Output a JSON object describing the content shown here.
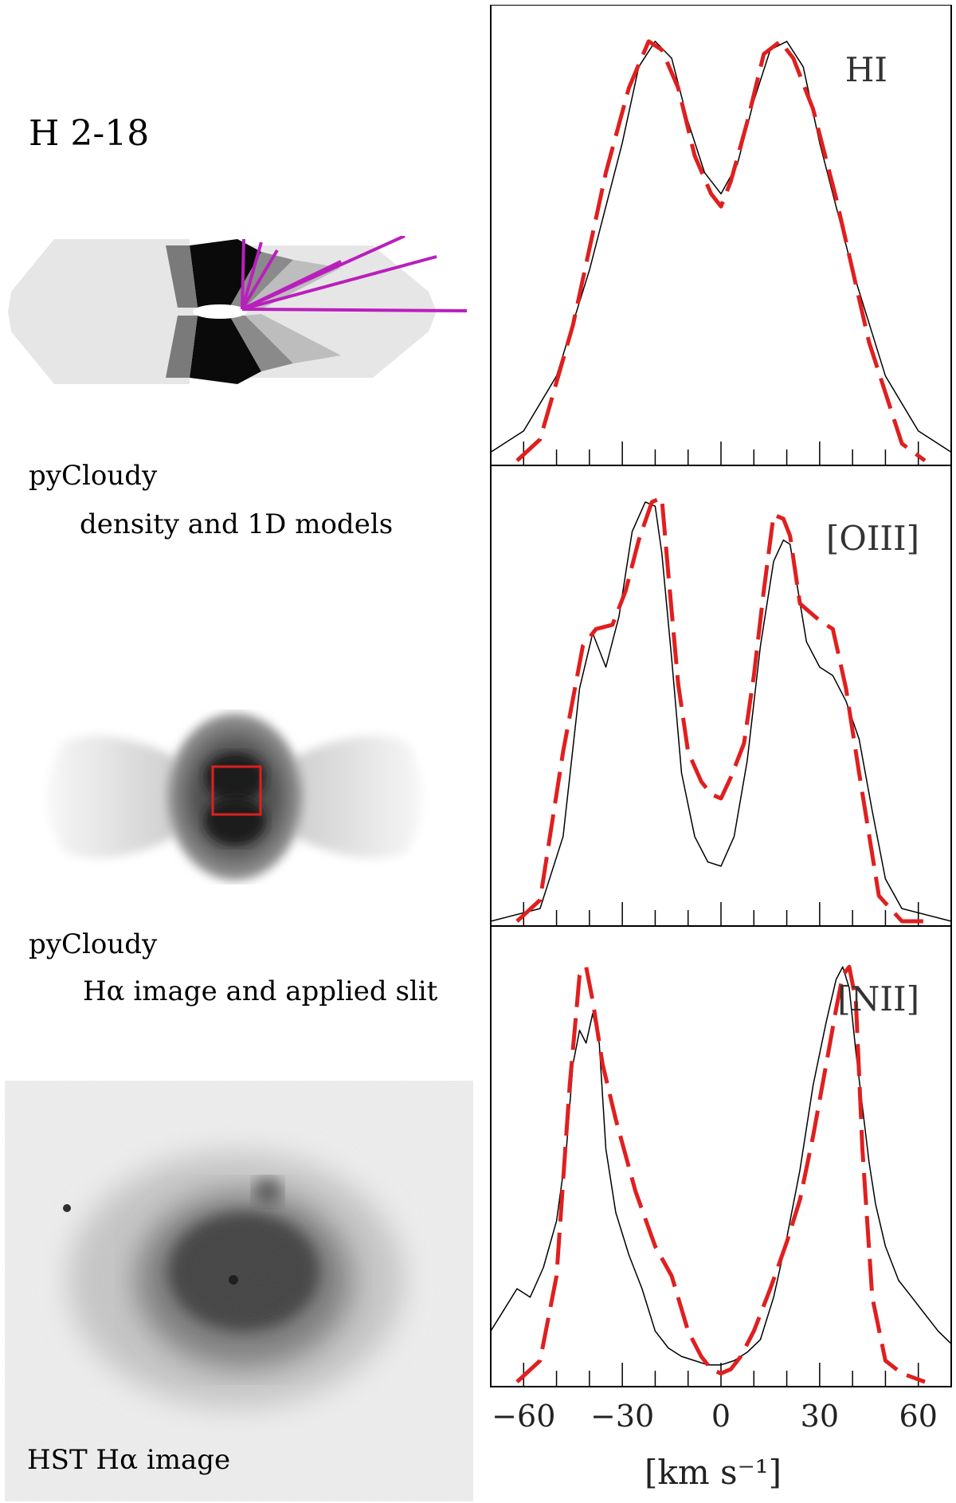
{
  "figure": {
    "object_name": "H 2-18",
    "model_caption_1": "pyCloudy",
    "model_caption_2": "density and 1D models",
    "halpha_caption_1": "pyCloudy",
    "halpha_caption_2": "Hα image and applied slit",
    "hst_caption": "HST Hα image"
  },
  "colors": {
    "observed_line": "#000000",
    "model_line": "#e01f1f",
    "radial_lines": "#b91fbd",
    "slit_box": "#e01f1f"
  },
  "chart_data": {
    "type": "line",
    "xlabel": "[km s⁻¹]",
    "x_ticks": [
      -60,
      -30,
      0,
      30,
      60
    ],
    "x_tick_labels": [
      "−60",
      "−30",
      "0",
      "30",
      "60"
    ],
    "xlim": [
      -70,
      70
    ],
    "grid": false,
    "panels": [
      {
        "label": "HI",
        "ylim": [
          0,
          1.05
        ],
        "series": [
          {
            "style": "solid",
            "color": "observed",
            "x": [
              -70,
              -60,
              -50,
              -40,
              -30,
              -25,
              -20,
              -15,
              -10,
              -5,
              0,
              5,
              10,
              15,
              20,
              25,
              30,
              40,
              50,
              60,
              70
            ],
            "y": [
              0.02,
              0.07,
              0.2,
              0.45,
              0.75,
              0.93,
              0.99,
              0.95,
              0.8,
              0.68,
              0.63,
              0.7,
              0.85,
              0.97,
              0.99,
              0.93,
              0.75,
              0.45,
              0.2,
              0.07,
              0.02
            ]
          },
          {
            "style": "dashed",
            "color": "model",
            "x": [
              -62,
              -55,
              -45,
              -35,
              -28,
              -22,
              -18,
              -13,
              -8,
              -3,
              0,
              3,
              8,
              13,
              18,
              22,
              28,
              35,
              45,
              55,
              62
            ],
            "y": [
              0.0,
              0.05,
              0.32,
              0.68,
              0.88,
              0.99,
              0.97,
              0.88,
              0.72,
              0.63,
              0.6,
              0.66,
              0.8,
              0.96,
              0.99,
              0.95,
              0.83,
              0.62,
              0.28,
              0.04,
              0.0
            ]
          }
        ]
      },
      {
        "label": "[OIII]",
        "ylim": [
          0,
          1.05
        ],
        "series": [
          {
            "style": "solid",
            "color": "observed",
            "x": [
              -70,
              -55,
              -48,
              -43,
              -39,
              -35,
              -31,
              -27,
              -23,
              -20,
              -18,
              -15,
              -12,
              -8,
              -4,
              0,
              4,
              8,
              12,
              16,
              19,
              21,
              23,
              26,
              30,
              34,
              38,
              42,
              46,
              50,
              55,
              70
            ],
            "y": [
              0.0,
              0.03,
              0.2,
              0.55,
              0.68,
              0.6,
              0.72,
              0.92,
              0.99,
              0.98,
              0.87,
              0.62,
              0.35,
              0.2,
              0.14,
              0.13,
              0.2,
              0.38,
              0.65,
              0.85,
              0.9,
              0.89,
              0.8,
              0.66,
              0.6,
              0.58,
              0.52,
              0.43,
              0.26,
              0.1,
              0.03,
              0.0
            ]
          },
          {
            "style": "dashed",
            "color": "model",
            "x": [
              -62,
              -55,
              -48,
              -42,
              -38,
              -33,
              -29,
              -25,
              -21,
              -18,
              -16,
              -13,
              -10,
              -6,
              -3,
              0,
              3,
              7,
              10,
              13,
              16,
              19,
              21,
              24,
              27,
              30,
              34,
              38,
              42,
              48,
              55,
              62
            ],
            "y": [
              0.0,
              0.05,
              0.4,
              0.65,
              0.69,
              0.7,
              0.78,
              0.9,
              0.99,
              1.0,
              0.82,
              0.56,
              0.4,
              0.33,
              0.3,
              0.29,
              0.34,
              0.42,
              0.58,
              0.78,
              0.96,
              0.95,
              0.91,
              0.75,
              0.73,
              0.71,
              0.69,
              0.55,
              0.35,
              0.06,
              0.0,
              0.0
            ]
          }
        ]
      },
      {
        "label": "[NII]",
        "ylim": [
          0,
          1.05
        ],
        "series": [
          {
            "style": "solid",
            "color": "observed",
            "x": [
              -70,
              -66,
              -62,
              -58,
              -54,
              -50,
              -47,
              -45,
              -43,
              -41,
              -39,
              -37,
              -35,
              -32,
              -28,
              -24,
              -20,
              -16,
              -12,
              -8,
              -4,
              0,
              4,
              8,
              12,
              16,
              20,
              24,
              28,
              32,
              35,
              37,
              39,
              41,
              43,
              45,
              47,
              50,
              54,
              58,
              62,
              66,
              70
            ],
            "y": [
              0.12,
              0.17,
              0.22,
              0.2,
              0.27,
              0.38,
              0.55,
              0.75,
              0.83,
              0.8,
              0.87,
              0.8,
              0.55,
              0.4,
              0.3,
              0.22,
              0.12,
              0.08,
              0.06,
              0.05,
              0.04,
              0.04,
              0.05,
              0.07,
              0.1,
              0.2,
              0.34,
              0.5,
              0.7,
              0.85,
              0.95,
              0.98,
              0.93,
              0.78,
              0.65,
              0.52,
              0.42,
              0.32,
              0.24,
              0.2,
              0.16,
              0.12,
              0.09
            ]
          },
          {
            "style": "dashed",
            "color": "model",
            "x": [
              -62,
              -55,
              -50,
              -46,
              -43,
              -41,
              -39,
              -36,
              -32,
              -26,
              -20,
              -15,
              -10,
              -6,
              -3,
              0,
              3,
              6,
              10,
              15,
              20,
              24,
              28,
              32,
              35,
              37,
              39,
              41,
              43,
              46,
              50,
              55,
              62
            ],
            "y": [
              0.0,
              0.05,
              0.25,
              0.7,
              0.96,
              0.98,
              0.9,
              0.75,
              0.62,
              0.45,
              0.32,
              0.25,
              0.12,
              0.06,
              0.03,
              0.02,
              0.03,
              0.06,
              0.12,
              0.22,
              0.33,
              0.43,
              0.58,
              0.75,
              0.88,
              0.96,
              0.98,
              0.9,
              0.55,
              0.2,
              0.05,
              0.02,
              0.0
            ]
          }
        ]
      }
    ]
  }
}
